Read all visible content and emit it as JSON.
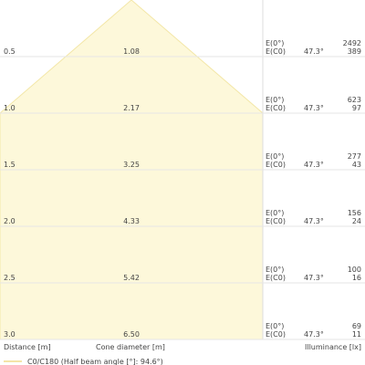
{
  "rows": [
    {
      "distance": "0.5",
      "diameter": "1.08",
      "e0_label": "E(0°)",
      "ec0_label": "E(C0)",
      "angle": "47.3°",
      "e0": "2492",
      "ec0": "389"
    },
    {
      "distance": "1.0",
      "diameter": "2.17",
      "e0_label": "E(0°)",
      "ec0_label": "E(C0)",
      "angle": "47.3°",
      "e0": "623",
      "ec0": "97"
    },
    {
      "distance": "1.5",
      "diameter": "3.25",
      "e0_label": "E(0°)",
      "ec0_label": "E(C0)",
      "angle": "47.3°",
      "e0": "277",
      "ec0": "43"
    },
    {
      "distance": "2.0",
      "diameter": "4.33",
      "e0_label": "E(0°)",
      "ec0_label": "E(C0)",
      "angle": "47.3°",
      "e0": "156",
      "ec0": "24"
    },
    {
      "distance": "2.5",
      "diameter": "5.42",
      "e0_label": "E(0°)",
      "ec0_label": "E(C0)",
      "angle": "47.3°",
      "e0": "100",
      "ec0": "16"
    },
    {
      "distance": "3.0",
      "diameter": "6.50",
      "e0_label": "E(0°)",
      "ec0_label": "E(C0)",
      "angle": "47.3°",
      "e0": "69",
      "ec0": "11"
    }
  ],
  "footer": {
    "distance": "Distance [m]",
    "diameter": "Cone diameter [m]",
    "illuminance": "Illuminance [lx]"
  },
  "legend": {
    "label": "C0/C180 (Half beam angle [°]: 94.6°)"
  }
}
